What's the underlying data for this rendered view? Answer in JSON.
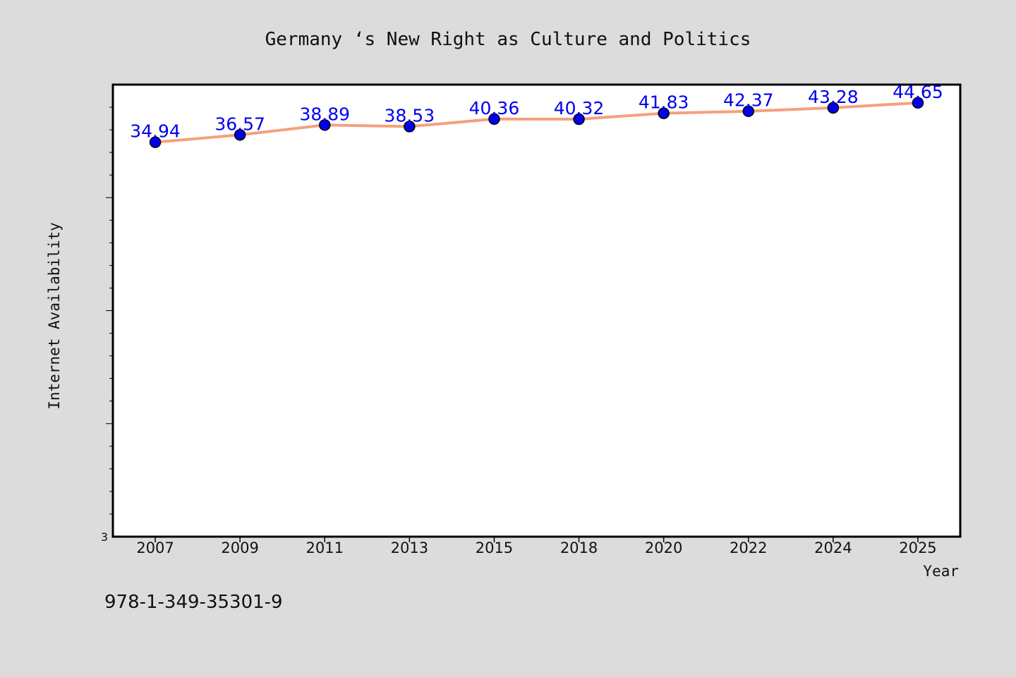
{
  "chart_data": {
    "type": "line",
    "title": "Germany ‘s New Right as Culture and Politics",
    "xlabel": "Year",
    "ylabel": "Internet Availability",
    "categories": [
      "2007",
      "2009",
      "2011",
      "2013",
      "2015",
      "2018",
      "2020",
      "2022",
      "2024",
      "2025"
    ],
    "series": [
      {
        "values": [
          34.94,
          36.57,
          38.89,
          38.53,
          40.36,
          40.32,
          41.83,
          42.37,
          43.28,
          44.65
        ]
      }
    ],
    "data_labels": [
      "34.94",
      "36.57",
      "38.89",
      "38.53",
      "40.36",
      "40.32",
      "41.83",
      "42.37",
      "43.28",
      "44.65"
    ],
    "ylim": [
      3,
      50
    ],
    "y_scale": "log",
    "y_tick_labels": [
      "3"
    ],
    "grid": false,
    "legend": false,
    "line_color": "#f4a07e",
    "marker_color": "#0000ee",
    "label_color": "#0000ee",
    "plot_background": "#ffffff",
    "page_background": "#dcdcdc"
  },
  "footer": {
    "isbn": "978-1-349-35301-9"
  }
}
